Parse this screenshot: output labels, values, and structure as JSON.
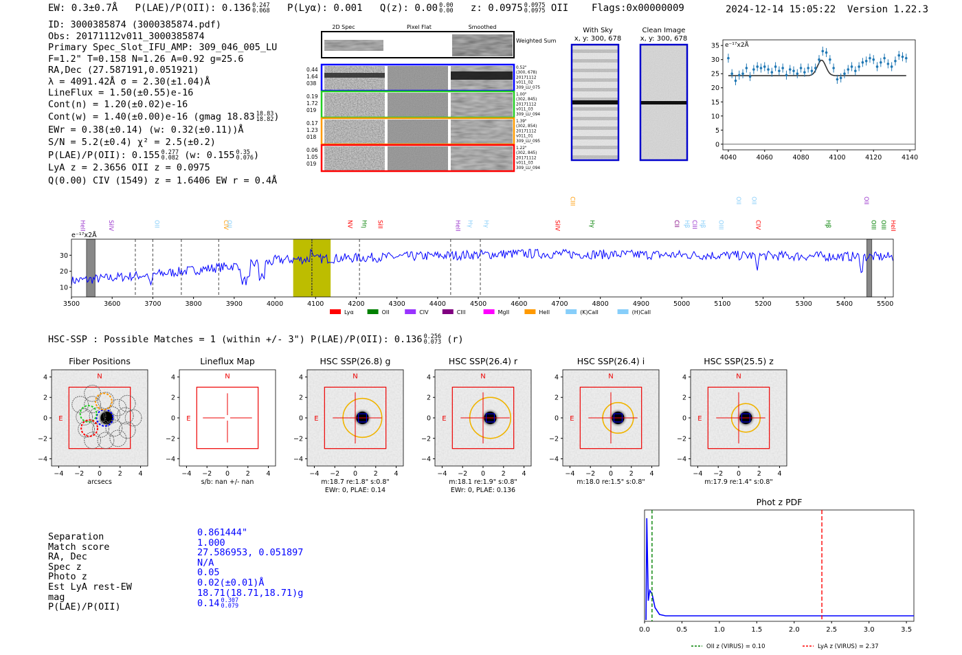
{
  "header": {
    "ew": "EW: 0.3±0.7Å",
    "plae_label": "P(LAE)/P(OII):",
    "plae_val": "0.136",
    "plae_hi": "0.247",
    "plae_lo": "0.068",
    "plya": "P(Lyα): 0.001",
    "qz_label": "Q(z): 0.00",
    "qz_hi": "0.00",
    "qz_lo": "0.00",
    "z_label": "z: 0.0975",
    "z_hi": "0.0975",
    "z_lo": "0.0975",
    "z_line": "OII",
    "flags": "Flags:0x00000009",
    "datetime": "2024-12-14 15:05:22",
    "version": "Version 1.22.3"
  },
  "info": {
    "lines": [
      "ID: 3000385874 (3000385874.pdf)",
      "Obs: 20171112v011_3000385874",
      "Primary Spec_Slot_IFU_AMP: 309_046_005_LU",
      "F=1.2\"  T=0.158  N=1.26  A=0.92  g=25.6",
      "RA,Dec (27.587191,0.051921)",
      "λ = 4091.42Å  σ = 2.30(±1.04)Å",
      "LineFlux = 1.50(±0.55)e-16",
      "Cont(n) = 1.20(±0.02)e-16"
    ],
    "contw": "Cont(w) = 1.40(±0.00)e-16 (gmag 18.83",
    "contw_hi": "18.83",
    "contw_lo": "18.82",
    "ewr": "EWr = 0.38(±0.14) (w: 0.32(±0.11))Å",
    "sn": "S/N = 5.2(±0.4)  χ² = 2.5(±0.2)",
    "plae2": "P(LAE)/P(OII): 0.155",
    "plae2_hi": "0.277",
    "plae2_lo": "0.082",
    "plae2_w": "(w: 0.155",
    "plae2_w_hi": "0.35",
    "plae2_w_lo": "0.076",
    "lya": "LyA z = 2.3656  OII z = 0.0975",
    "civ": "Q(0.00) CIV (1549) z = 1.6406  EW r = 0.4Å"
  },
  "cutouts": {
    "col_headers": [
      "2D Spec",
      "Pixel Flat",
      "Smoothed"
    ],
    "weighted_label": "Weighted Sum",
    "rows": [
      {
        "left": [
          "0.44",
          "1.64",
          "038"
        ],
        "right": [
          "0.52\"",
          "(300, 678)",
          "20171112",
          "v011_02",
          "309_LU_075"
        ],
        "color": "#0000ff"
      },
      {
        "left": [
          "0.19",
          "1.72",
          "019"
        ],
        "right": [
          "1.00\"",
          "(302, 845)",
          "20171112",
          "v011_03",
          "309_LU_094"
        ],
        "color": "#22cc22"
      },
      {
        "left": [
          "0.17",
          "1.23",
          "018"
        ],
        "right": [
          "1.39\"",
          "(302, 854)",
          "20171112",
          "v011_01",
          "309_LU_095"
        ],
        "color": "#ff9900"
      },
      {
        "left": [
          "0.06",
          "1.05",
          "019"
        ],
        "right": [
          "1.22\"",
          "(302, 845)",
          "20171112",
          "v011_03",
          "309_LU_094"
        ],
        "color": "#ff0000"
      }
    ],
    "sky_title": "With Sky",
    "sky_coords": "x, y: 300, 678",
    "clean_title": "Clean Image",
    "clean_coords": "x, y: 300, 678"
  },
  "zoom_chart": {
    "type": "scatter",
    "ylabel": "e⁻¹⁷x2Å",
    "xlim": [
      4037,
      4143
    ],
    "ylim": [
      -2,
      37
    ],
    "xticks": [
      4040,
      4060,
      4080,
      4100,
      4120,
      4140
    ],
    "yticks": [
      0,
      5,
      10,
      15,
      20,
      25,
      30,
      35
    ],
    "x": [
      4040,
      4042,
      4044,
      4046,
      4048,
      4050,
      4052,
      4054,
      4056,
      4058,
      4060,
      4062,
      4064,
      4066,
      4068,
      4070,
      4072,
      4074,
      4076,
      4078,
      4080,
      4082,
      4084,
      4086,
      4088,
      4090,
      4092,
      4094,
      4096,
      4098,
      4100,
      4102,
      4104,
      4106,
      4108,
      4110,
      4112,
      4114,
      4116,
      4118,
      4120,
      4122,
      4124,
      4126,
      4128,
      4130,
      4132,
      4134,
      4136,
      4138
    ],
    "y": [
      30.5,
      25,
      22.5,
      24.5,
      25,
      27,
      24,
      26.5,
      27.5,
      27,
      27.5,
      26.5,
      25.5,
      27.5,
      26,
      27,
      24.5,
      26.5,
      26,
      25,
      27,
      25.5,
      27,
      26,
      27,
      30,
      33,
      32.5,
      30,
      27,
      23,
      23.5,
      25,
      26.5,
      27.5,
      26,
      27.5,
      29,
      29.5,
      30.5,
      30,
      27.5,
      29,
      30.5,
      28.5,
      27.5,
      29.5,
      31.5,
      31,
      30.5
    ],
    "fit_baseline": 24.3,
    "fit_peak": 5.5,
    "fit_center": 4091.4,
    "fit_sigma": 2.3
  },
  "spectrum": {
    "type": "line",
    "ylabel": "e⁻¹⁷x2Å",
    "xlim": [
      3500,
      5520
    ],
    "ylim": [
      4,
      40
    ],
    "xticks": [
      3500,
      3600,
      3700,
      3800,
      3900,
      4000,
      4100,
      4200,
      4300,
      4400,
      4500,
      4600,
      4700,
      4800,
      4900,
      5000,
      5100,
      5200,
      5300,
      5400,
      5500
    ],
    "yticks": [
      10,
      20,
      30
    ],
    "highlight": [
      4045,
      4137
    ],
    "hatched": [
      [
        3537,
        3558
      ],
      [
        5455,
        5467
      ]
    ],
    "dashed_lines": [
      3657,
      3700,
      3770,
      3862,
      4091,
      4208,
      4432,
      4505
    ],
    "line_labels": [
      {
        "w": 3518,
        "t": "HeII",
        "c": "#9933cc",
        "up": false
      },
      {
        "w": 3588,
        "t": "SiIV",
        "c": "#9933cc",
        "up": false
      },
      {
        "w": 3700,
        "t": "OII",
        "c": "#87cefa",
        "up": false
      },
      {
        "w": 3870,
        "t": "CIV",
        "c": "#ff9900",
        "up": false
      },
      {
        "w": 3878,
        "t": "OII",
        "c": "#87cefa",
        "up": false
      },
      {
        "w": 4175,
        "t": "NV",
        "c": "#ff0000",
        "up": false
      },
      {
        "w": 4210,
        "t": "Hη",
        "c": "#008000",
        "up": false
      },
      {
        "w": 4249,
        "t": "SiII",
        "c": "#ff0000",
        "up": false
      },
      {
        "w": 4440,
        "t": "HeII",
        "c": "#9933cc",
        "up": false
      },
      {
        "w": 4470,
        "t": "Hγ",
        "c": "#87cefa",
        "up": false
      },
      {
        "w": 4510,
        "t": "Hγ",
        "c": "#87cefa",
        "up": false
      },
      {
        "w": 4685,
        "t": "SiIV",
        "c": "#ff0000",
        "up": false
      },
      {
        "w": 4722,
        "t": "CIII",
        "c": "#ff9900",
        "up": true
      },
      {
        "w": 4770,
        "t": "Hγ",
        "c": "#008000",
        "up": false
      },
      {
        "w": 4978,
        "t": "CII",
        "c": "#800080",
        "up": false
      },
      {
        "w": 5003,
        "t": "Hβ",
        "c": "#87cefa",
        "up": false
      },
      {
        "w": 5022,
        "t": "CIII",
        "c": "#9933cc",
        "up": false
      },
      {
        "w": 5042,
        "t": "Hβ",
        "c": "#87cefa",
        "up": false
      },
      {
        "w": 5087,
        "t": "OIII",
        "c": "#87cefa",
        "up": false
      },
      {
        "w": 5130,
        "t": "OII",
        "c": "#87cefa",
        "up": true
      },
      {
        "w": 5168,
        "t": "OII",
        "c": "#87cefa",
        "up": true
      },
      {
        "w": 5178,
        "t": "CIV",
        "c": "#ff0000",
        "up": false
      },
      {
        "w": 5350,
        "t": "Hβ",
        "c": "#008000",
        "up": false
      },
      {
        "w": 5462,
        "t": "OIII",
        "c": "#008000",
        "up": false
      },
      {
        "w": 5444,
        "t": "OII",
        "c": "#9933cc",
        "up": true
      },
      {
        "w": 5486,
        "t": "OIII",
        "c": "#008000",
        "up": false
      },
      {
        "w": 5510,
        "t": "HeII",
        "c": "#ff0000",
        "up": false
      }
    ],
    "legend": [
      {
        "t": "Lyα",
        "c": "#ff0000"
      },
      {
        "t": "OII",
        "c": "#008000"
      },
      {
        "t": "CIV",
        "c": "#9933ff"
      },
      {
        "t": "CIII",
        "c": "#800080"
      },
      {
        "t": "MgII",
        "c": "#ff00ff"
      },
      {
        "t": "HeII",
        "c": "#ff9900"
      },
      {
        "t": "(K)CaII",
        "c": "#87cefa"
      },
      {
        "t": "(H)CaII",
        "c": "#87cefa"
      }
    ]
  },
  "hsc": {
    "header": "HSC-SSP : Possible Matches = 1 (within +/- 3\")  P(LAE)/P(OII): 0.136",
    "header_hi": "0.256",
    "header_lo": "0.073",
    "header_tail": "(r)",
    "ticks": [
      -4,
      -2,
      0,
      2,
      4
    ],
    "panels": [
      {
        "title": "Fiber Positions",
        "caption": [
          "arcsecs"
        ],
        "kind": "fiber"
      },
      {
        "title": "Lineflux Map",
        "caption": [
          "s/b: nan +/- nan"
        ],
        "kind": "lineflux"
      },
      {
        "title": "HSC SSP(26.8) g",
        "caption": [
          "m:18.7  re:1.8\"  s:0.8\"",
          "EWr: 0, PLAE: 0.14"
        ],
        "kind": "img",
        "ring": 1.9
      },
      {
        "title": "HSC SSP(26.4) r",
        "caption": [
          "m:18.1  re:1.9\"  s:0.8\"",
          "EWr: 0, PLAE: 0.136"
        ],
        "kind": "img",
        "ring": 2.0
      },
      {
        "title": "HSC SSP(26.4) i",
        "caption": [
          "m:18.0  re:1.5\"  s:0.8\""
        ],
        "kind": "img",
        "ring": 1.5
      },
      {
        "title": "HSC SSP(25.5) z",
        "caption": [
          "m:17.9  re:1.4\"  s:0.8\""
        ],
        "kind": "img",
        "ring": 1.4
      }
    ]
  },
  "match": {
    "labels": [
      "Separation",
      "Match score",
      "RA, Dec",
      "Spec z",
      "Photo z",
      "Est LyA rest-EW",
      "mag",
      "P(LAE)/P(OII)"
    ],
    "values": [
      "0.861444\"",
      "1.000",
      "27.586953, 0.051897",
      "N/A",
      "0.05",
      "0.02(±0.01)Å",
      "18.71(18.71,18.71)g",
      "0.14"
    ],
    "plae_hi": "0.307",
    "plae_lo": "0.079"
  },
  "photz_chart": {
    "type": "line",
    "title": "Phot z PDF",
    "xlim": [
      0,
      3.6
    ],
    "xticks": [
      0.0,
      0.5,
      1.0,
      1.5,
      2.0,
      2.5,
      3.0,
      3.5
    ],
    "oii_z": 0.1,
    "lya_z": 2.37,
    "legend": [
      "OII z (VIRUS) = 0.10",
      "LyA z (VIRUS) = 2.37"
    ]
  }
}
